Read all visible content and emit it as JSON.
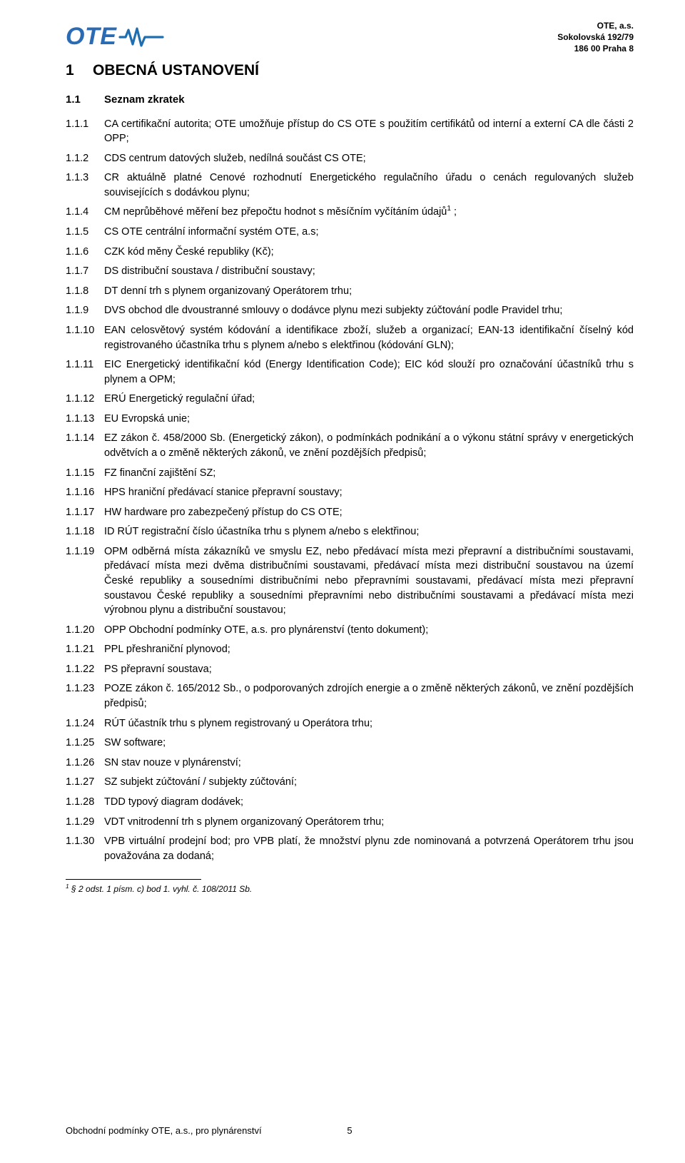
{
  "brand": {
    "name": "OTE",
    "logo_text_color": "#2a6bb3",
    "wave_color": "#1f6fb0",
    "company": "OTE, a.s.",
    "address1": "Sokolovská 192/79",
    "address2": "186 00 Praha 8"
  },
  "section": {
    "num": "1",
    "title": "OBECNÁ USTANOVENÍ"
  },
  "subsection": {
    "num": "1.1",
    "title": "Seznam zkratek"
  },
  "items": [
    {
      "n": "1.1.1",
      "t": "CA certifikační autorita; OTE umožňuje přístup do CS OTE s použitím certifikátů od interní a externí CA dle části 2 OPP;"
    },
    {
      "n": "1.1.2",
      "t": "CDS centrum datových služeb, nedílná součást CS OTE;"
    },
    {
      "n": "1.1.3",
      "t": "CR aktuálně platné Cenové rozhodnutí Energetického regulačního úřadu o cenách regulovaných služeb souvisejících s dodávkou plynu;"
    },
    {
      "n": "1.1.4",
      "t": "CM neprůběhové měření bez přepočtu hodnot s měsíčním vyčítáním údajů",
      "sup": "1",
      "tail": " ;"
    },
    {
      "n": "1.1.5",
      "t": "CS OTE centrální informační systém OTE, a.s;"
    },
    {
      "n": "1.1.6",
      "t": "CZK kód měny České republiky (Kč);"
    },
    {
      "n": "1.1.7",
      "t": "DS distribuční soustava / distribuční soustavy;"
    },
    {
      "n": "1.1.8",
      "t": "DT denní trh s plynem organizovaný Operátorem trhu;"
    },
    {
      "n": "1.1.9",
      "t": "DVS obchod dle dvoustranné smlouvy o dodávce plynu mezi subjekty zúčtování podle Pravidel trhu;"
    },
    {
      "n": "1.1.10",
      "t": "EAN celosvětový systém kódování a identifikace zboží, služeb a organizací; EAN-13 identifikační číselný kód registrovaného účastníka trhu s plynem a/nebo s elektřinou (kódování GLN);"
    },
    {
      "n": "1.1.11",
      "t": "EIC Energetický identifikační kód (Energy Identification Code); EIC kód slouží pro označování účastníků trhu s plynem a OPM;"
    },
    {
      "n": "1.1.12",
      "t": "ERÚ Energetický regulační úřad;"
    },
    {
      "n": "1.1.13",
      "t": "EU Evropská unie;"
    },
    {
      "n": "1.1.14",
      "t": "EZ zákon č. 458/2000 Sb. (Energetický zákon), o podmínkách podnikání a o výkonu státní správy v energetických odvětvích a o změně některých zákonů, ve znění pozdějších předpisů;"
    },
    {
      "n": "1.1.15",
      "t": "FZ finanční zajištění SZ;"
    },
    {
      "n": "1.1.16",
      "t": "HPS hraniční předávací stanice přepravní soustavy;"
    },
    {
      "n": "1.1.17",
      "t": "HW hardware pro zabezpečený přístup do CS OTE;"
    },
    {
      "n": "1.1.18",
      "t": "ID RÚT registrační číslo účastníka trhu s plynem a/nebo s elektřinou;"
    },
    {
      "n": "1.1.19",
      "t": "OPM odběrná místa zákazníků ve smyslu EZ, nebo předávací místa mezi přepravní a distribučními soustavami, předávací místa mezi dvěma distribučními soustavami, předávací místa mezi distribuční soustavou na území České republiky a sousedními distribučními nebo přepravními soustavami, předávací místa mezi přepravní soustavou České republiky a sousedními přepravními nebo distribučními soustavami a předávací místa mezi výrobnou plynu a distribuční soustavou;"
    },
    {
      "n": "1.1.20",
      "t": "OPP Obchodní podmínky OTE, a.s. pro plynárenství (tento dokument);"
    },
    {
      "n": "1.1.21",
      "t": "PPL přeshraniční plynovod;"
    },
    {
      "n": "1.1.22",
      "t": "PS přepravní soustava;"
    },
    {
      "n": "1.1.23",
      "t": "POZE zákon č. 165/2012 Sb., o podporovaných zdrojích energie a o změně některých zákonů, ve znění pozdějších předpisů;"
    },
    {
      "n": "1.1.24",
      "t": "RÚT účastník trhu s plynem registrovaný u Operátora trhu;"
    },
    {
      "n": "1.1.25",
      "t": "SW software;"
    },
    {
      "n": "1.1.26",
      "t": "SN stav nouze v plynárenství;"
    },
    {
      "n": "1.1.27",
      "t": "SZ subjekt zúčtování / subjekty zúčtování;"
    },
    {
      "n": "1.1.28",
      "t": "TDD typový diagram dodávek;"
    },
    {
      "n": "1.1.29",
      "t": "VDT vnitrodenní trh s plynem organizovaný Operátorem trhu;"
    },
    {
      "n": "1.1.30",
      "t": "VPB virtuální prodejní bod; pro VPB platí, že množství plynu zde nominovaná a potvrzená Operátorem trhu jsou považována za dodaná;"
    }
  ],
  "footnote": {
    "mark": "1",
    "text": " § 2 odst. 1 písm. c) bod 1. vyhl. č. 108/2011 Sb."
  },
  "footer": {
    "left": "Obchodní podmínky OTE, a.s., pro plynárenství",
    "page": "5"
  },
  "colors": {
    "text": "#000000",
    "bg": "#ffffff",
    "brand": "#2a6bb3"
  }
}
